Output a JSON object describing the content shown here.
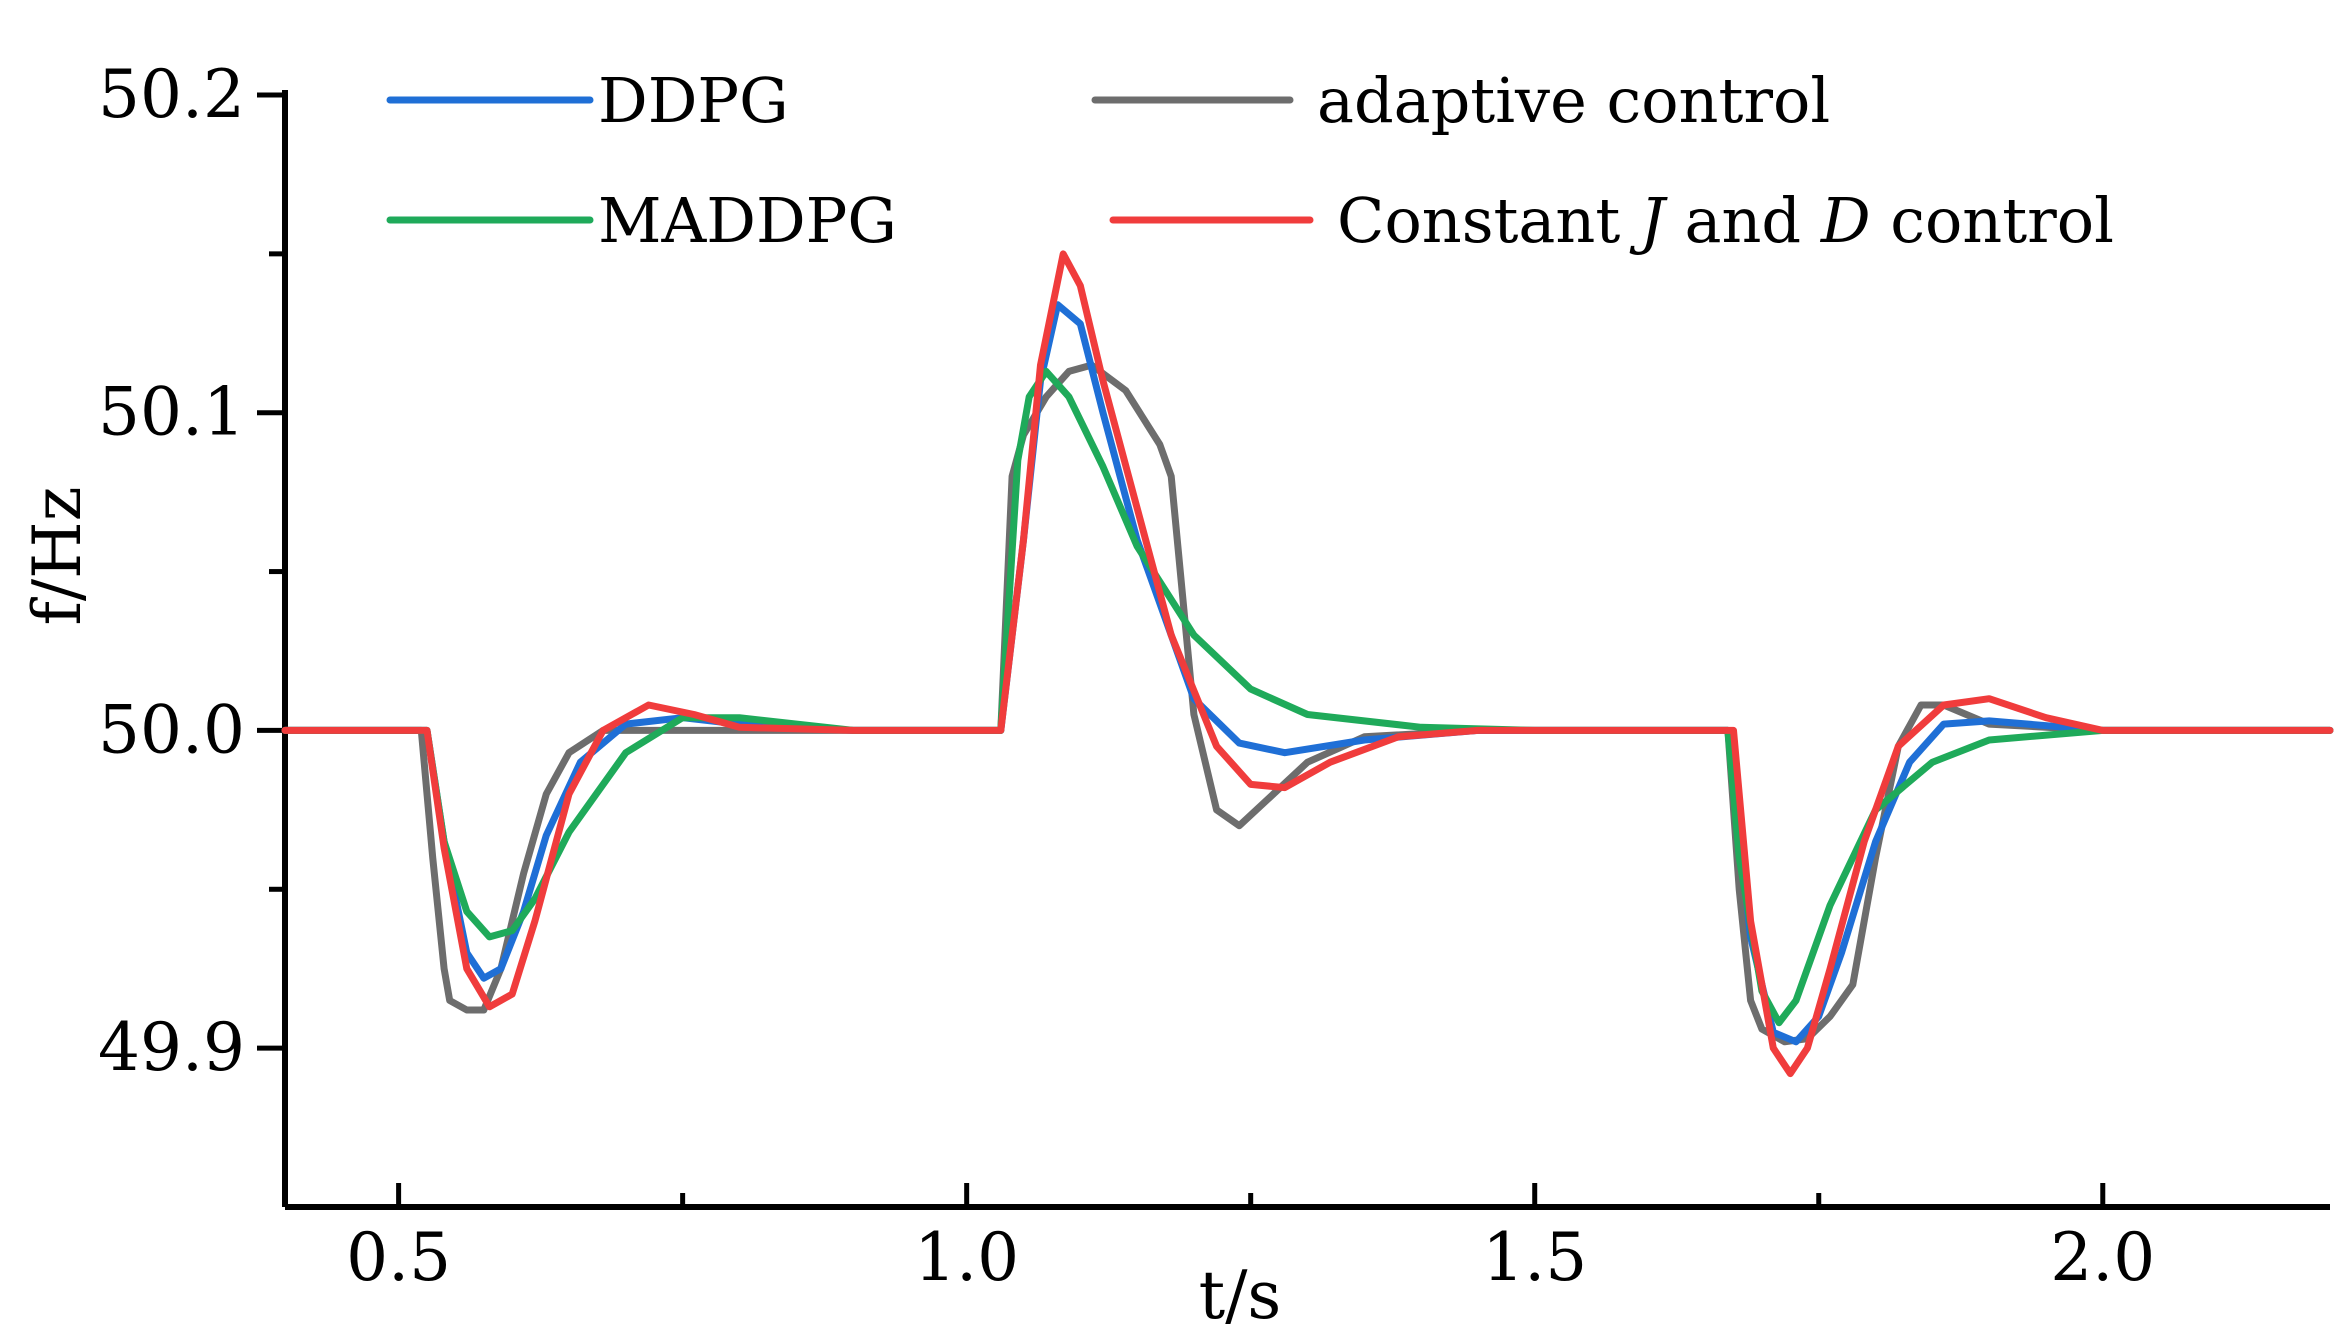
{
  "chart_data": {
    "type": "line",
    "title": "",
    "xlabel": "t/s",
    "ylabel": "f/Hz",
    "xlim": [
      0.4,
      2.2
    ],
    "ylim": [
      49.85,
      50.2
    ],
    "xticks": [
      0.5,
      1.0,
      1.5,
      2.0
    ],
    "xtick_labels": [
      "0.5",
      "1.0",
      "1.5",
      "2.0"
    ],
    "xminor": [
      0.75,
      1.25,
      1.75
    ],
    "yticks": [
      49.9,
      50.0,
      50.1,
      50.2
    ],
    "ytick_labels": [
      "49.9",
      "50.0",
      "50.1",
      "50.2"
    ],
    "yminor": [
      49.95,
      50.05,
      50.15
    ],
    "grid": false,
    "legend_position": "top",
    "series": [
      {
        "name": "adaptive control",
        "legend_parts": [
          {
            "text": "adaptive control",
            "italic": false
          }
        ],
        "color": "#6d6d6d",
        "x": [
          0.4,
          0.52,
          0.53,
          0.54,
          0.545,
          0.56,
          0.575,
          0.59,
          0.61,
          0.63,
          0.65,
          0.68,
          0.72,
          0.8,
          0.9,
          1.0,
          1.03,
          1.04,
          1.05,
          1.07,
          1.09,
          1.11,
          1.14,
          1.17,
          1.18,
          1.2,
          1.22,
          1.24,
          1.27,
          1.3,
          1.35,
          1.45,
          1.67,
          1.68,
          1.69,
          1.7,
          1.72,
          1.74,
          1.76,
          1.78,
          1.8,
          1.82,
          1.84,
          1.86,
          1.9,
          2.0,
          2.2
        ],
        "y": [
          50.0,
          50.0,
          49.96,
          49.925,
          49.915,
          49.912,
          49.912,
          49.925,
          49.955,
          49.98,
          49.993,
          50.0,
          50.0,
          50.0,
          50.0,
          50.0,
          50.0,
          50.08,
          50.093,
          50.105,
          50.113,
          50.115,
          50.107,
          50.09,
          50.08,
          50.005,
          49.975,
          49.97,
          49.98,
          49.99,
          49.998,
          50.0,
          50.0,
          49.95,
          49.915,
          49.906,
          49.902,
          49.903,
          49.91,
          49.92,
          49.96,
          49.995,
          50.008,
          50.008,
          50.002,
          50.0,
          50.0
        ]
      },
      {
        "name": "DDPG",
        "legend_parts": [
          {
            "text": "DDPG",
            "italic": false
          }
        ],
        "color": "#1f6fd6",
        "x": [
          0.4,
          0.525,
          0.54,
          0.56,
          0.575,
          0.59,
          0.61,
          0.63,
          0.66,
          0.7,
          0.75,
          0.8,
          0.9,
          1.0,
          1.03,
          1.05,
          1.065,
          1.08,
          1.1,
          1.12,
          1.15,
          1.18,
          1.2,
          1.24,
          1.28,
          1.35,
          1.45,
          1.67,
          1.69,
          1.71,
          1.73,
          1.75,
          1.77,
          1.8,
          1.83,
          1.86,
          1.9,
          2.0,
          2.2
        ],
        "y": [
          50.0,
          50.0,
          49.965,
          49.93,
          49.922,
          49.925,
          49.943,
          49.967,
          49.99,
          50.002,
          50.004,
          50.002,
          50.0,
          50.0,
          50.0,
          50.06,
          50.11,
          50.134,
          50.128,
          50.1,
          50.06,
          50.03,
          50.01,
          49.996,
          49.993,
          49.997,
          50.0,
          50.0,
          49.935,
          49.905,
          49.902,
          49.91,
          49.93,
          49.965,
          49.99,
          50.002,
          50.003,
          50.0,
          50.0
        ]
      },
      {
        "name": "MADDPG",
        "legend_parts": [
          {
            "text": "MADDPG",
            "italic": false
          }
        ],
        "color": "#1faa5a",
        "x": [
          0.4,
          0.525,
          0.54,
          0.56,
          0.58,
          0.6,
          0.62,
          0.65,
          0.7,
          0.75,
          0.8,
          0.9,
          1.0,
          1.03,
          1.045,
          1.055,
          1.07,
          1.09,
          1.12,
          1.15,
          1.2,
          1.25,
          1.3,
          1.4,
          1.5,
          1.67,
          1.68,
          1.7,
          1.715,
          1.73,
          1.76,
          1.8,
          1.85,
          1.9,
          2.0,
          2.2
        ],
        "y": [
          50.0,
          50.0,
          49.965,
          49.943,
          49.935,
          49.937,
          49.947,
          49.968,
          49.993,
          50.004,
          50.004,
          50.0,
          50.0,
          50.0,
          50.085,
          50.105,
          50.113,
          50.105,
          50.083,
          50.058,
          50.03,
          50.013,
          50.005,
          50.001,
          50.0,
          50.0,
          49.96,
          49.918,
          49.908,
          49.915,
          49.945,
          49.975,
          49.99,
          49.997,
          50.0,
          50.0
        ]
      },
      {
        "name": "Constant J and D control",
        "legend_parts": [
          {
            "text": "Constant ",
            "italic": false
          },
          {
            "text": "J",
            "italic": true
          },
          {
            "text": " and ",
            "italic": false
          },
          {
            "text": "D",
            "italic": true
          },
          {
            "text": " control",
            "italic": false
          }
        ],
        "color": "#f03c3c",
        "x": [
          0.4,
          0.525,
          0.54,
          0.56,
          0.58,
          0.6,
          0.62,
          0.65,
          0.68,
          0.72,
          0.76,
          0.8,
          0.9,
          1.0,
          1.03,
          1.05,
          1.065,
          1.085,
          1.1,
          1.12,
          1.15,
          1.18,
          1.22,
          1.25,
          1.28,
          1.32,
          1.38,
          1.45,
          1.675,
          1.69,
          1.71,
          1.725,
          1.74,
          1.76,
          1.79,
          1.82,
          1.86,
          1.9,
          1.95,
          2.0,
          2.2
        ],
        "y": [
          50.0,
          50.0,
          49.963,
          49.925,
          49.913,
          49.917,
          49.94,
          49.98,
          50.0,
          50.008,
          50.005,
          50.001,
          50.0,
          50.0,
          50.0,
          50.06,
          50.115,
          50.15,
          50.14,
          50.11,
          50.07,
          50.03,
          49.995,
          49.983,
          49.982,
          49.99,
          49.998,
          50.0,
          50.0,
          49.94,
          49.9,
          49.892,
          49.9,
          49.925,
          49.965,
          49.995,
          50.008,
          50.01,
          50.004,
          50.0,
          50.0
        ]
      }
    ]
  }
}
